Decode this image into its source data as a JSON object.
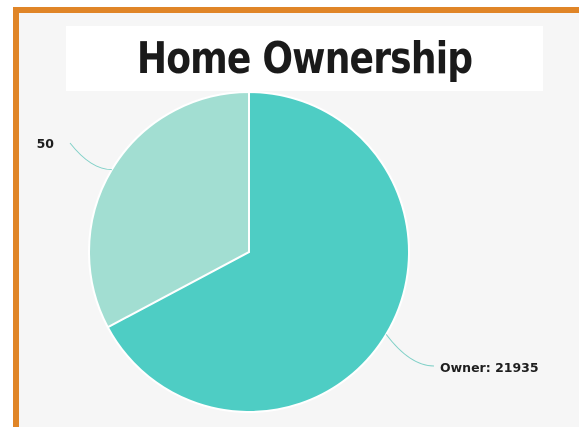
{
  "title": "Home Ownership",
  "colors": {
    "border": "#e08527",
    "owner": "#4ecdc4",
    "other": "#a2ded2",
    "leader": "#7fd0c7"
  },
  "chart_data": {
    "type": "pie",
    "title": "Home Ownership",
    "slices": [
      {
        "label": "Owner: 21935",
        "value": 21935,
        "color": "#4ecdc4"
      },
      {
        "label": "50",
        "value": 10700,
        "color": "#a2ded2"
      }
    ],
    "start_angle_deg": 0,
    "direction": "clockwise"
  }
}
